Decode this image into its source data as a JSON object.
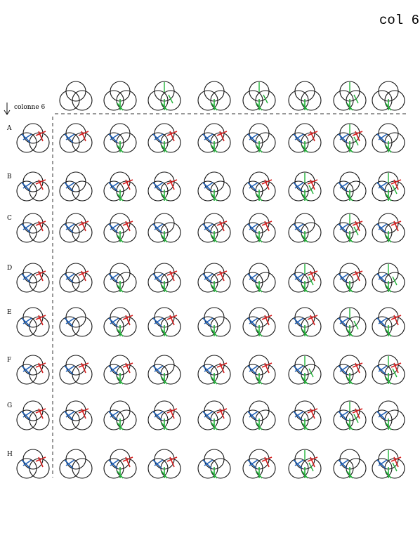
{
  "header": {
    "title": "col 6",
    "column_label": "colonne 6"
  },
  "row_labels": [
    "A",
    "B",
    "C",
    "D",
    "E",
    "F",
    "G",
    "H"
  ]
}
